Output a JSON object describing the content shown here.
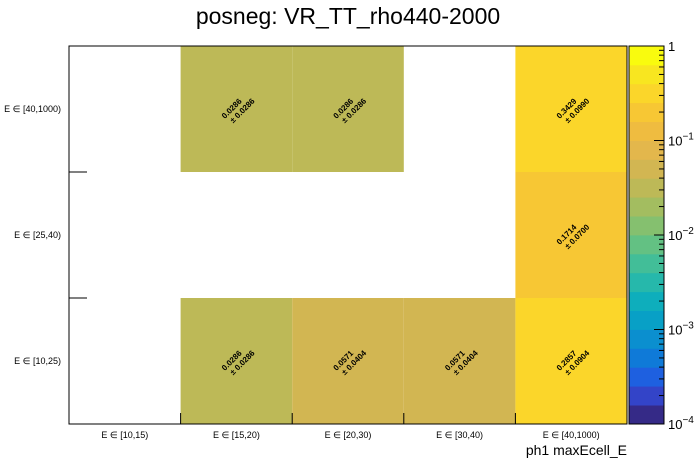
{
  "chart_data": {
    "type": "heatmap",
    "title": "posneg: VR_TT_rho440-2000",
    "xlabel": "ph1 maxEcell_E",
    "ylabel": "",
    "x_categories": [
      "E ∈ [10,15)",
      "E ∈ [15,20)",
      "E ∈ [20,30)",
      "E ∈ [30,40)",
      "E ∈ [40,1000)"
    ],
    "y_categories": [
      "E ∈ [10,25)",
      "E ∈ [25,40)",
      "E ∈ [40,1000)"
    ],
    "z_scale": "log",
    "zlim": [
      0.0001,
      1
    ],
    "z_ticks": [
      {
        "value": 1,
        "label": "1",
        "sup": ""
      },
      {
        "value": 0.1,
        "label": "10",
        "sup": "−1"
      },
      {
        "value": 0.01,
        "label": "10",
        "sup": "−2"
      },
      {
        "value": 0.001,
        "label": "10",
        "sup": "−3"
      },
      {
        "value": 0.0001,
        "label": "10",
        "sup": "−4"
      }
    ],
    "cells": [
      {
        "x": 1,
        "y": 0,
        "value": 0.0286,
        "value_label": "0.0286",
        "error_label": "± 0.0286"
      },
      {
        "x": 2,
        "y": 0,
        "value": 0.0571,
        "value_label": "0.0571",
        "error_label": "± 0.0404"
      },
      {
        "x": 3,
        "y": 0,
        "value": 0.0571,
        "value_label": "0.0571",
        "error_label": "± 0.0404"
      },
      {
        "x": 4,
        "y": 0,
        "value": 0.2857,
        "value_label": "0.2857",
        "error_label": "± 0.0904"
      },
      {
        "x": 4,
        "y": 1,
        "value": 0.1714,
        "value_label": "0.1714",
        "error_label": "± 0.0700"
      },
      {
        "x": 1,
        "y": 2,
        "value": 0.0286,
        "value_label": "0.0286",
        "error_label": "± 0.0286"
      },
      {
        "x": 2,
        "y": 2,
        "value": 0.0286,
        "value_label": "0.0286",
        "error_label": "± 0.0286"
      },
      {
        "x": 4,
        "y": 2,
        "value": 0.3429,
        "value_label": "0.3429",
        "error_label": "± 0.0990"
      }
    ],
    "palette": [
      "#352a87",
      "#3344c8",
      "#1e60e0",
      "#0f7ad8",
      "#0b8fcf",
      "#08a0c6",
      "#0eaebc",
      "#26b8ab",
      "#42be98",
      "#63c183",
      "#85c06f",
      "#a3bd60",
      "#bdb957",
      "#d2b652",
      "#e3b74c",
      "#efbc40",
      "#f7c734",
      "#fbd62a",
      "#f8e620",
      "#f9fb0e"
    ]
  }
}
